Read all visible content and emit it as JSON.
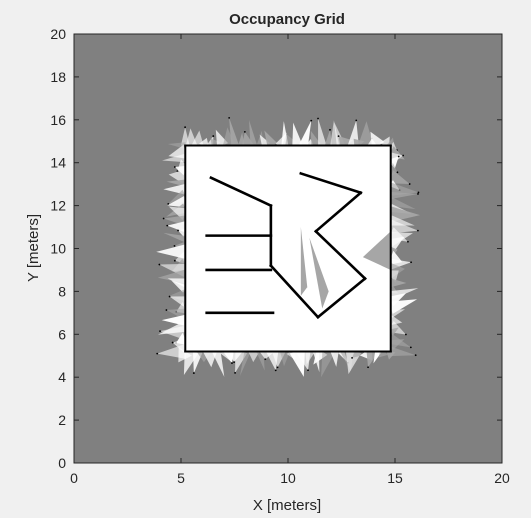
{
  "window": {
    "background": "#f0f0f0"
  },
  "chart_data": {
    "type": "heatmap",
    "title": "Occupancy Grid",
    "xlabel": "X [meters]",
    "ylabel": "Y [meters]",
    "xlim": [
      0,
      20
    ],
    "ylim": [
      0,
      20
    ],
    "xticks": [
      0,
      5,
      10,
      15,
      20
    ],
    "yticks": [
      0,
      2,
      4,
      6,
      8,
      10,
      12,
      14,
      16,
      18,
      20
    ],
    "grid": false,
    "colormap": "gray",
    "colors": {
      "unknown": "#808080",
      "free": "#ffffff",
      "occupied": "#000000",
      "partial": "#a6a6a6",
      "axes": "#262626"
    },
    "map": {
      "free_region": {
        "x": [
          5.2,
          14.8
        ],
        "y": [
          5.2,
          14.8
        ]
      },
      "walls": [
        {
          "name": "outer-wall-top",
          "points": [
            [
              5.2,
              14.8
            ],
            [
              14.8,
              14.8
            ]
          ]
        },
        {
          "name": "outer-wall-bottom",
          "points": [
            [
              5.2,
              5.2
            ],
            [
              14.8,
              5.2
            ]
          ]
        },
        {
          "name": "outer-wall-left",
          "points": [
            [
              5.2,
              5.2
            ],
            [
              5.2,
              14.8
            ]
          ]
        },
        {
          "name": "outer-wall-right",
          "points": [
            [
              14.8,
              5.2
            ],
            [
              14.8,
              14.8
            ]
          ]
        },
        {
          "name": "wall-diagonal-upper-left",
          "points": [
            [
              6.4,
              13.3
            ],
            [
              9.2,
              12.0
            ]
          ]
        },
        {
          "name": "wall-vertical-left",
          "points": [
            [
              9.2,
              12.0
            ],
            [
              9.2,
              9.2
            ]
          ]
        },
        {
          "name": "wall-horizontal-1",
          "points": [
            [
              6.2,
              10.6
            ],
            [
              9.2,
              10.6
            ]
          ]
        },
        {
          "name": "wall-horizontal-2",
          "points": [
            [
              6.2,
              9.0
            ],
            [
              9.2,
              9.0
            ]
          ]
        },
        {
          "name": "wall-horizontal-3",
          "points": [
            [
              6.2,
              7.0
            ],
            [
              9.3,
              7.0
            ]
          ]
        },
        {
          "name": "wall-diagonal-lower",
          "points": [
            [
              9.2,
              9.2
            ],
            [
              11.4,
              6.8
            ]
          ]
        },
        {
          "name": "wall-diagonal-lower-right",
          "points": [
            [
              11.4,
              6.8
            ],
            [
              13.6,
              8.6
            ]
          ]
        },
        {
          "name": "wall-diagonal-center",
          "points": [
            [
              13.6,
              8.6
            ],
            [
              11.3,
              10.8
            ]
          ]
        },
        {
          "name": "wall-diagonal-upper-right",
          "points": [
            [
              11.3,
              10.8
            ],
            [
              13.4,
              12.6
            ]
          ]
        },
        {
          "name": "wall-top-right",
          "points": [
            [
              10.6,
              13.5
            ],
            [
              13.4,
              12.6
            ]
          ]
        }
      ],
      "unscanned_areas": [
        {
          "name": "shadow-center-1",
          "points": [
            [
              11.0,
              10.5
            ],
            [
              11.9,
              8.0
            ],
            [
              11.6,
              7.2
            ]
          ]
        },
        {
          "name": "shadow-center-2",
          "points": [
            [
              10.6,
              11.0
            ],
            [
              10.9,
              8.2
            ],
            [
              10.6,
              7.8
            ]
          ]
        },
        {
          "name": "shadow-right",
          "points": [
            [
              13.5,
              9.6
            ],
            [
              14.8,
              10.8
            ],
            [
              14.8,
              9.0
            ]
          ]
        }
      ]
    }
  }
}
